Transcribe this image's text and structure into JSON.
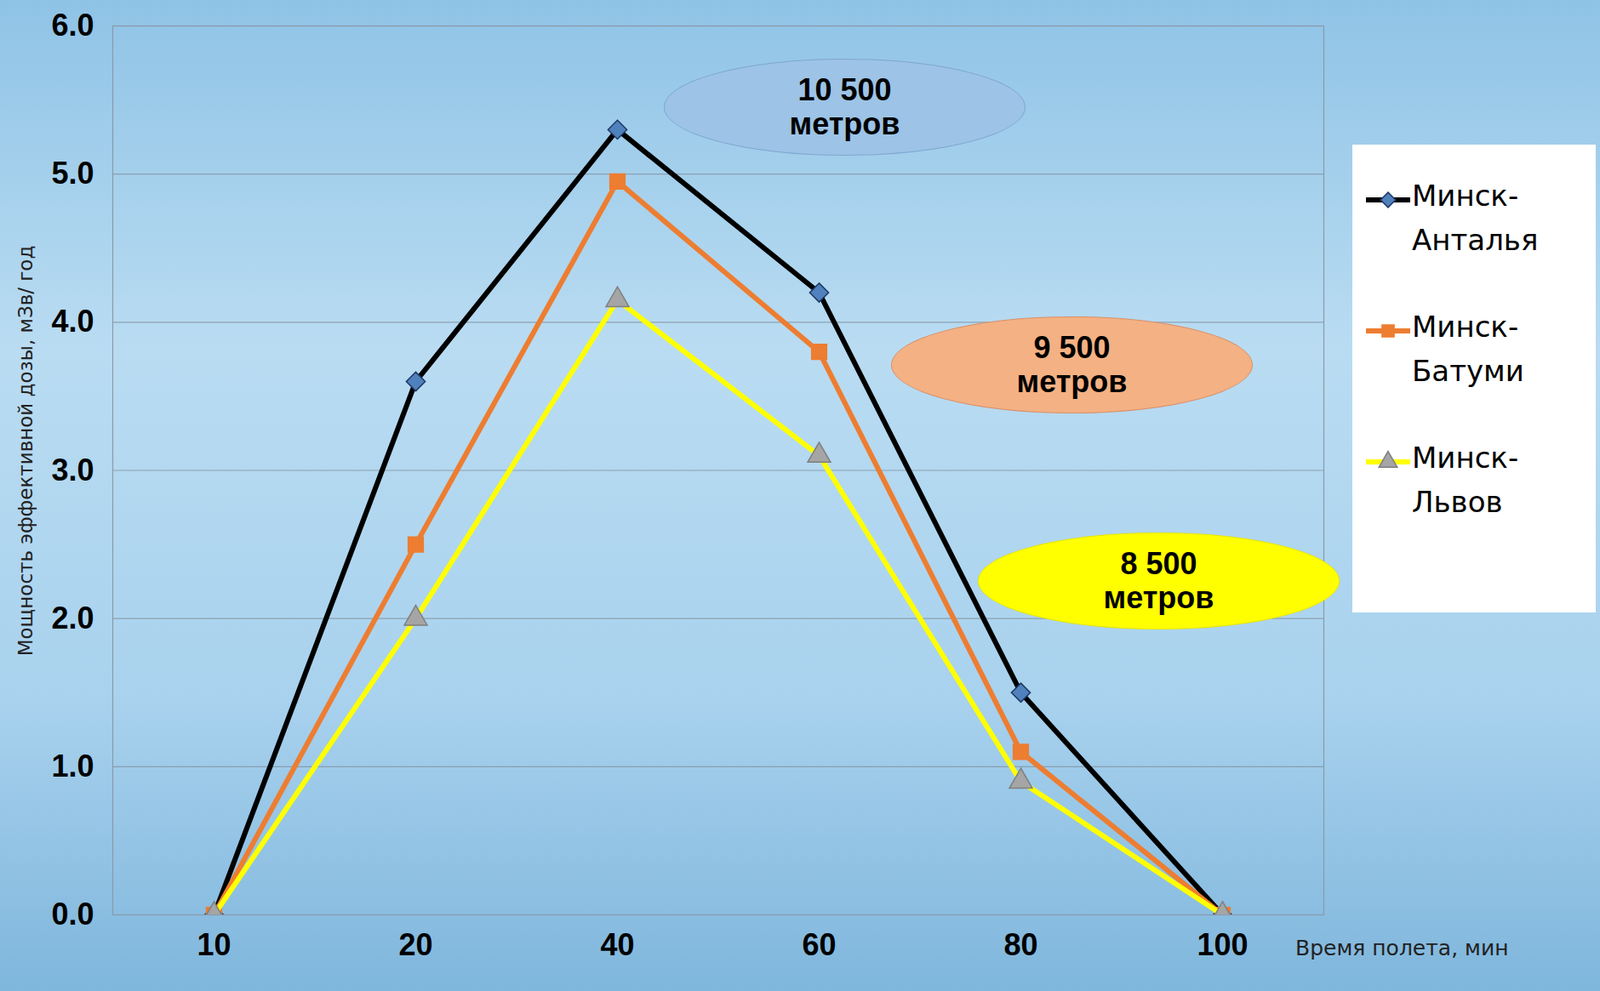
{
  "chart_data": {
    "type": "line",
    "x_label": "Время полета, мин",
    "y_label": "Мощность эффективной дозы, мЗв/ год",
    "categories": [
      10,
      20,
      40,
      60,
      80,
      100
    ],
    "ylim": [
      0,
      6
    ],
    "yticks": [
      0,
      1,
      2,
      3,
      4,
      5,
      6
    ],
    "grid": true,
    "legend": "right",
    "series": [
      {
        "name": "Минск-Анталья",
        "color": "#000000",
        "marker": "diamond",
        "values": [
          0,
          3.6,
          5.3,
          4.2,
          1.5,
          0
        ]
      },
      {
        "name": "Минск-Батуми",
        "color": "#ed7d31",
        "marker": "square",
        "values": [
          0,
          2.5,
          4.95,
          3.8,
          1.1,
          0
        ]
      },
      {
        "name": "Минск-Львов",
        "color": "#ffff00",
        "marker": "triangle",
        "values": [
          0,
          2.0,
          4.15,
          3.1,
          0.9,
          0
        ]
      }
    ],
    "annotations": [
      "10 500 метров",
      "9 500 метров",
      "8 500 метров"
    ]
  }
}
